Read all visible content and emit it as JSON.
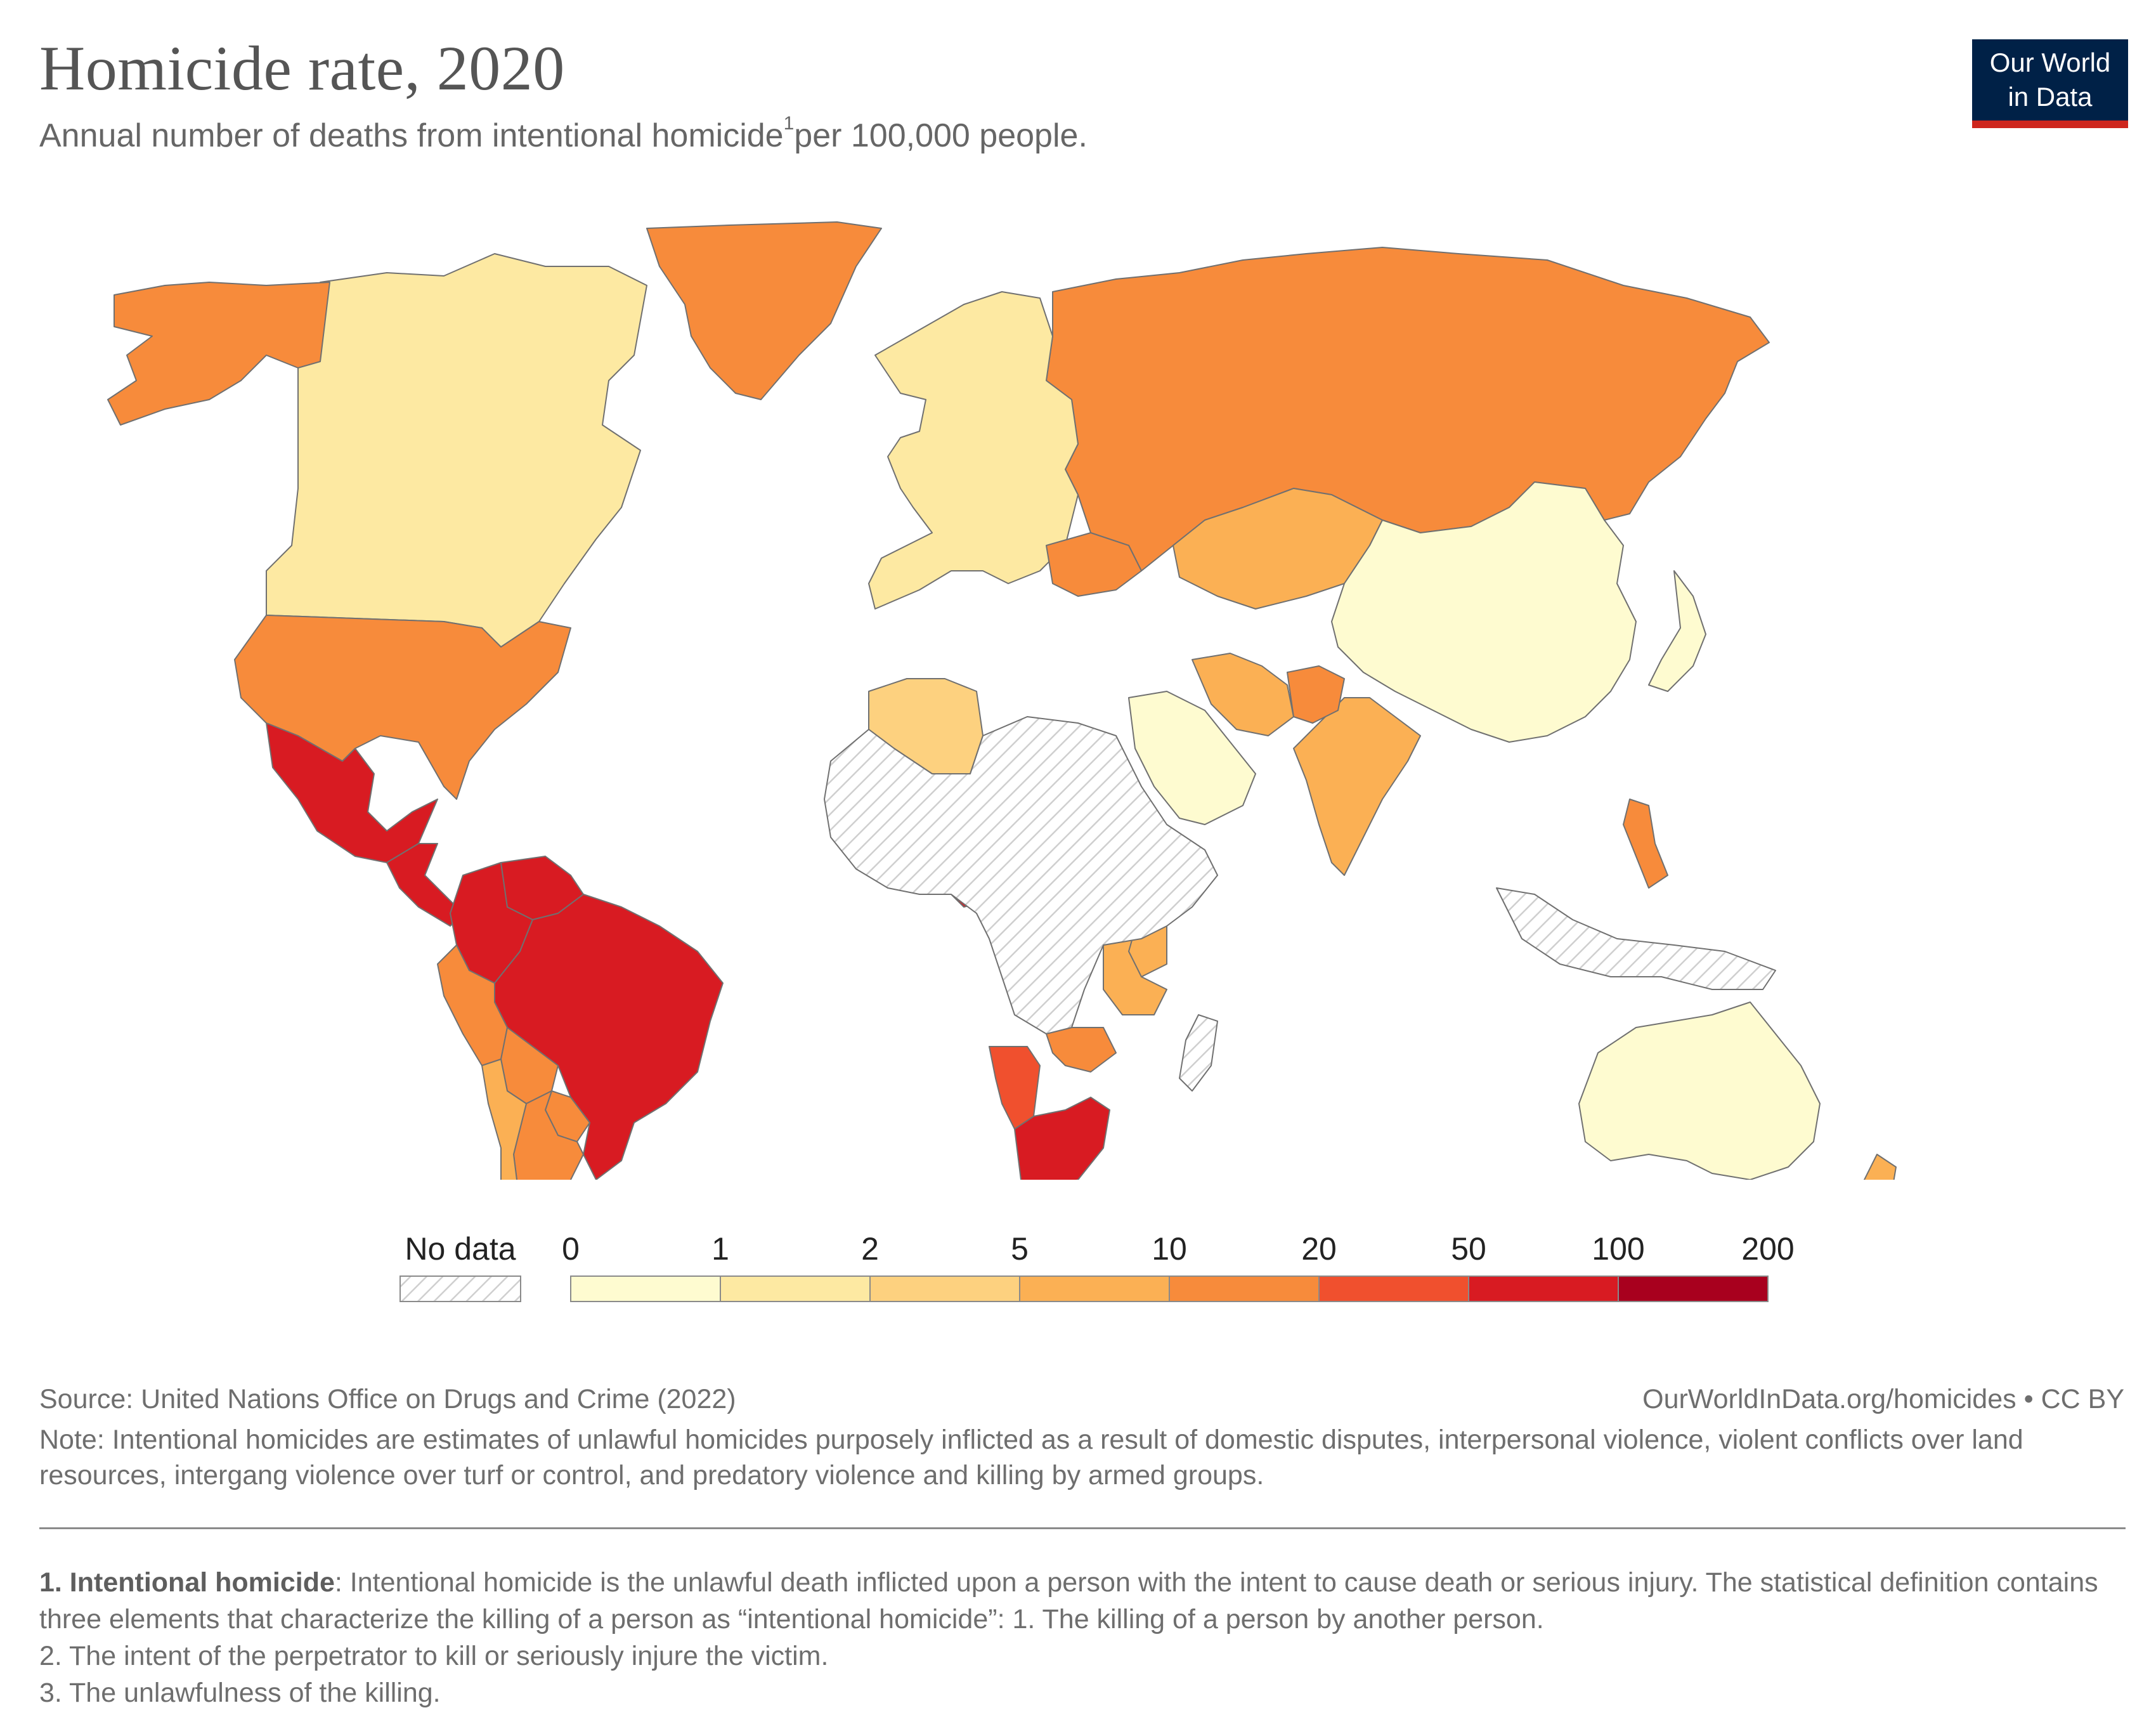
{
  "header": {
    "title": "Homicide rate, 2020",
    "subtitle": "Annual number of deaths from intentional homicide",
    "subtitle_sup": "1",
    "subtitle_tail": "per 100,000 people."
  },
  "logo": {
    "line1": "Our World",
    "line2": "in Data",
    "bg_color": "#002147",
    "bar_color": "#ce261e"
  },
  "legend": {
    "no_data_label": "No data",
    "bins": [
      "0",
      "1",
      "2",
      "5",
      "10",
      "20",
      "50",
      "100",
      "200"
    ],
    "colors": [
      "#fefbd0",
      "#fde9a2",
      "#fdd17f",
      "#fbb054",
      "#f78b3b",
      "#f0502e",
      "#d81b22",
      "#a8001e"
    ]
  },
  "map": {
    "regions": [
      {
        "name": "Canada",
        "bin": 1
      },
      {
        "name": "Greenland",
        "bin": 4
      },
      {
        "name": "United States",
        "bin": 4
      },
      {
        "name": "Alaska",
        "bin": 4
      },
      {
        "name": "Mexico",
        "bin": 6
      },
      {
        "name": "Central America",
        "bin": 6
      },
      {
        "name": "Colombia",
        "bin": 6
      },
      {
        "name": "Venezuela",
        "bin": 6
      },
      {
        "name": "Brazil",
        "bin": 6
      },
      {
        "name": "Peru",
        "bin": 4
      },
      {
        "name": "Bolivia",
        "bin": 4
      },
      {
        "name": "Paraguay",
        "bin": 4
      },
      {
        "name": "Argentina",
        "bin": 4
      },
      {
        "name": "Chile",
        "bin": 3
      },
      {
        "name": "Russia",
        "bin": 4
      },
      {
        "name": "Kazakhstan",
        "bin": 3
      },
      {
        "name": "China",
        "bin": 0
      },
      {
        "name": "India",
        "bin": 3
      },
      {
        "name": "Saudi Arabia",
        "bin": 0
      },
      {
        "name": "Iran",
        "bin": 3
      },
      {
        "name": "Afghanistan",
        "bin": 4
      },
      {
        "name": "Algeria",
        "bin": 2
      },
      {
        "name": "Nigeria",
        "bin": 6
      },
      {
        "name": "South Africa",
        "bin": 6
      },
      {
        "name": "Namibia",
        "bin": 5
      },
      {
        "name": "Tanzania",
        "bin": 3
      },
      {
        "name": "Kenya",
        "bin": 3
      },
      {
        "name": "Zambia",
        "bin": 4
      },
      {
        "name": "Australia",
        "bin": 0
      },
      {
        "name": "New Zealand",
        "bin": 3
      },
      {
        "name": "Europe",
        "bin": 1
      },
      {
        "name": "Ukraine",
        "bin": 4
      },
      {
        "name": "Japan",
        "bin": 0
      },
      {
        "name": "Philippines",
        "bin": 4
      },
      {
        "name": "Indonesia",
        "bin": -1
      },
      {
        "name": "Sahara / Central Africa",
        "bin": -1
      },
      {
        "name": "Madagascar",
        "bin": -1
      }
    ]
  },
  "footer": {
    "source": "Source: United Nations Office on Drugs and Crime (2022)",
    "url": "OurWorldInData.org/homicides • CC BY",
    "note": "Note: Intentional homicides are estimates of unlawful homicides purposely inflicted as a result of domestic disputes, interpersonal violence, violent conflicts over land resources, intergang violence over turf or control, and predatory violence and killing by armed groups.",
    "footnote_term": "1. Intentional homicide",
    "footnote_def": ": Intentional homicide is the unlawful death inflicted upon a person with the intent to cause death or serious injury. The statistical definition contains three elements that characterize the killing of a person as “intentional homicide”: 1. The killing of a person by another person.",
    "footnote_2": "2. The intent of the perpetrator to kill or seriously injure the victim.",
    "footnote_3": "3. The unlawfulness of the killing."
  }
}
